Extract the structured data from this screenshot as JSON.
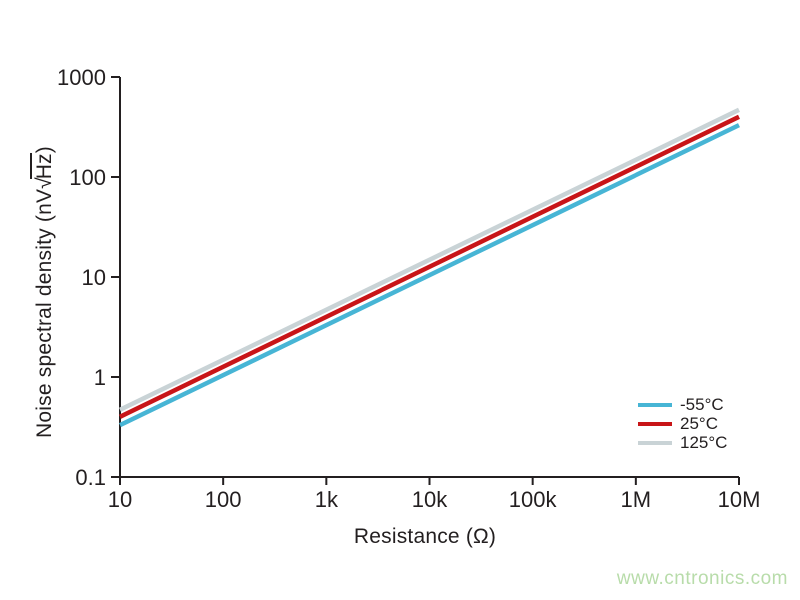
{
  "colors": {
    "axis": "#231f20",
    "text": "#231f20",
    "background": "#ffffff"
  },
  "watermark": {
    "text": "www.cntronics.com",
    "color": "#b8dcaa"
  },
  "chart_data": {
    "type": "line",
    "title": "",
    "xlabel": "Resistance (Ω)",
    "ylabel": "Noise spectral density (nV√Hz)",
    "ylabel_parts": {
      "prefix": "Noise spectral density (nV",
      "radical": "√",
      "radicand": "Hz",
      "suffix": ")"
    },
    "x_scale": "log",
    "y_scale": "log",
    "xlim": [
      10,
      10000000
    ],
    "ylim": [
      0.1,
      1000
    ],
    "grid": false,
    "legend_position": "lower right",
    "x_ticks": [
      {
        "v": 10,
        "label": "10"
      },
      {
        "v": 100,
        "label": "100"
      },
      {
        "v": 1000,
        "label": "1k"
      },
      {
        "v": 10000,
        "label": "10k"
      },
      {
        "v": 100000,
        "label": "100k"
      },
      {
        "v": 1000000,
        "label": "1M"
      },
      {
        "v": 10000000,
        "label": "10M"
      }
    ],
    "y_ticks": [
      {
        "v": 1000,
        "label": "1000"
      },
      {
        "v": 100,
        "label": "100"
      },
      {
        "v": 10,
        "label": "10"
      },
      {
        "v": 1,
        "label": "1"
      },
      {
        "v": 0.1,
        "label": "0.1"
      }
    ],
    "x": [
      10,
      10000000
    ],
    "series": [
      {
        "name": "-55°C",
        "color": "#47b5d5",
        "values": [
          0.33,
          330
        ]
      },
      {
        "name": "25°C",
        "color": "#c81518",
        "values": [
          0.4,
          400
        ]
      },
      {
        "name": "125°C",
        "color": "#c9d3d6",
        "values": [
          0.47,
          470
        ]
      }
    ]
  }
}
